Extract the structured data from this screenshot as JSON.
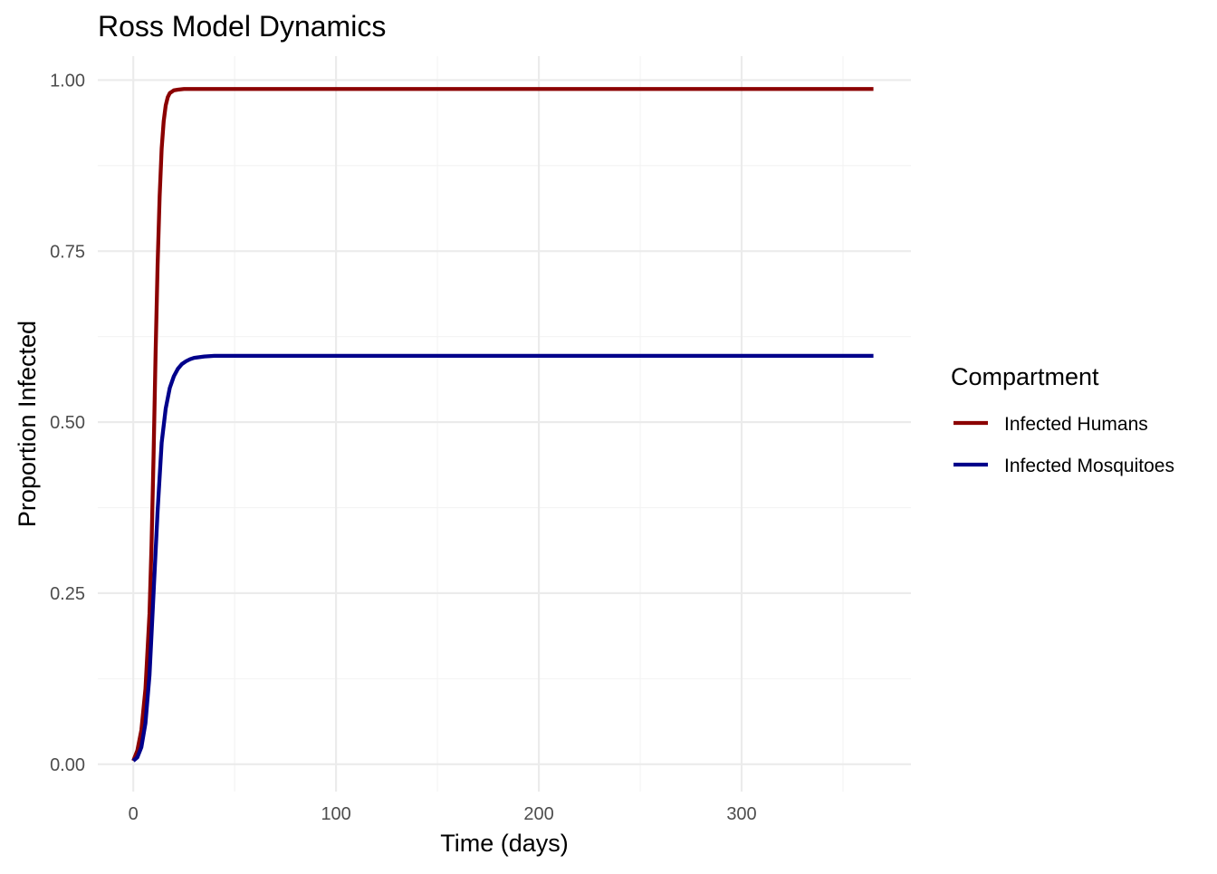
{
  "chart_data": {
    "type": "line",
    "title": "Ross Model Dynamics",
    "xlabel": "Time (days)",
    "ylabel": "Proportion Infected",
    "xlim": [
      -17.5,
      383.5
    ],
    "ylim": [
      -0.04,
      1.035
    ],
    "x_ticks": [
      0,
      100,
      200,
      300
    ],
    "x_tick_labels": [
      "0",
      "100",
      "200",
      "300"
    ],
    "x_minor_ticks": [
      50,
      150,
      250,
      350
    ],
    "y_ticks": [
      0,
      0.25,
      0.5,
      0.75,
      1.0
    ],
    "y_tick_labels": [
      "0.00",
      "0.25",
      "0.50",
      "0.75",
      "1.00"
    ],
    "y_minor_ticks": [
      0.125,
      0.375,
      0.625,
      0.875
    ],
    "grid": true,
    "legend": {
      "title": "Compartment",
      "position": "right"
    },
    "series": [
      {
        "name": "Infected Humans",
        "color": "#8B0000",
        "x": [
          0,
          2,
          4,
          6,
          8,
          9,
          10,
          11,
          12,
          13,
          14,
          15,
          16,
          17,
          18,
          20,
          22,
          25,
          30,
          40,
          60,
          100,
          200,
          300,
          365
        ],
        "y": [
          0.005,
          0.02,
          0.05,
          0.11,
          0.22,
          0.32,
          0.45,
          0.6,
          0.73,
          0.83,
          0.9,
          0.94,
          0.963,
          0.975,
          0.981,
          0.985,
          0.986,
          0.987,
          0.987,
          0.987,
          0.987,
          0.987,
          0.987,
          0.987,
          0.987
        ]
      },
      {
        "name": "Infected Mosquitoes",
        "color": "#00008B",
        "x": [
          0,
          2,
          4,
          6,
          8,
          10,
          12,
          14,
          16,
          18,
          20,
          22,
          24,
          26,
          28,
          30,
          35,
          40,
          50,
          100,
          200,
          300,
          365
        ],
        "y": [
          0.005,
          0.01,
          0.025,
          0.06,
          0.13,
          0.25,
          0.37,
          0.47,
          0.52,
          0.55,
          0.567,
          0.578,
          0.585,
          0.589,
          0.592,
          0.594,
          0.596,
          0.597,
          0.597,
          0.597,
          0.597,
          0.597,
          0.597
        ]
      }
    ]
  }
}
